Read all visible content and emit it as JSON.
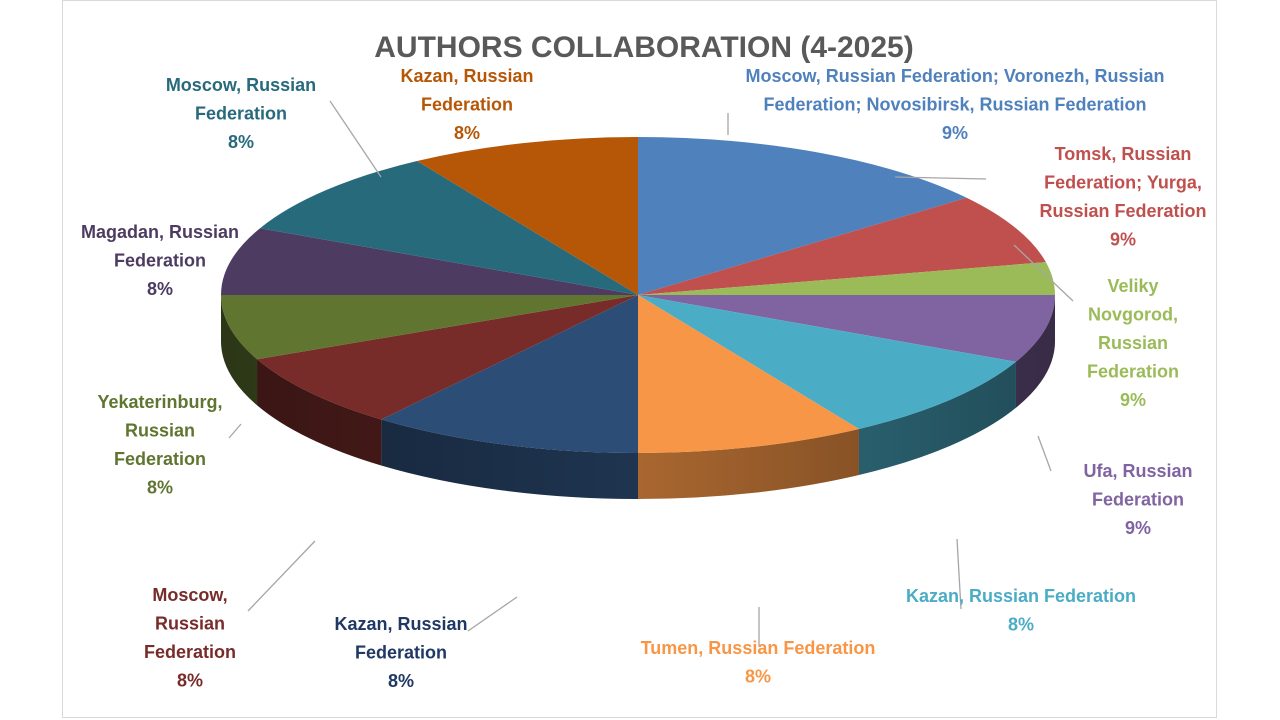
{
  "chart_data": {
    "type": "pie",
    "title": "AUTHORS COLLABORATION (4-2025)",
    "slices": [
      {
        "label": "Moscow, Russian Federation; Voronezh, Russian Federation; Novosibirsk, Russian Federation",
        "pct_label": "9%",
        "value": 9,
        "color": "#4f81bd",
        "label_color": "#4f81bd"
      },
      {
        "label": "Tomsk, Russian Federation; Yurga, Russian Federation",
        "pct_label": "9%",
        "value": 9,
        "color": "#c0504d",
        "label_color": "#c0504d"
      },
      {
        "label": "Veliky Novgorod, Russian Federation",
        "pct_label": "9%",
        "value": 9,
        "color": "#9bbb59",
        "label_color": "#9bbb59"
      },
      {
        "label": "Ufa, Russian Federation",
        "pct_label": "9%",
        "value": 9,
        "color": "#8064a2",
        "label_color": "#8064a2"
      },
      {
        "label": "Kazan, Russian Federation",
        "pct_label": "8%",
        "value": 8,
        "color": "#4bacc6",
        "label_color": "#4bacc6"
      },
      {
        "label": "Tumen, Russian Federation",
        "pct_label": "8%",
        "value": 8,
        "color": "#f79646",
        "label_color": "#f79646"
      },
      {
        "label": "Kazan, Russian Federation",
        "pct_label": "8%",
        "value": 8,
        "color": "#2c4d75",
        "label_color": "#1f3864"
      },
      {
        "label": "Moscow, Russian Federation",
        "pct_label": "8%",
        "value": 8,
        "color": "#772c2a",
        "label_color": "#772c2a"
      },
      {
        "label": "Yekaterinburg, Russian Federation",
        "pct_label": "8%",
        "value": 8,
        "color": "#5f7530",
        "label_color": "#5f7530"
      },
      {
        "label": "Magadan, Russian Federation",
        "pct_label": "8%",
        "value": 8,
        "color": "#4d3b62",
        "label_color": "#4d3b62"
      },
      {
        "label": "Moscow, Russian Federation",
        "pct_label": "8%",
        "value": 8,
        "color": "#276a7c",
        "label_color": "#276a7c"
      },
      {
        "label": "Kazan, Russian Federation",
        "pct_label": "8%",
        "value": 8,
        "color": "#b65708",
        "label_color": "#b65708"
      }
    ]
  }
}
